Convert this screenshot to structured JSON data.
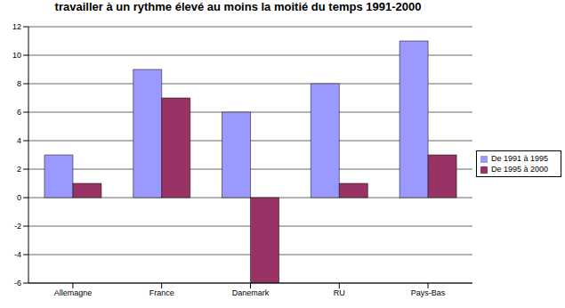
{
  "chart_data": {
    "type": "bar",
    "title": "travailler à un rythme élevé au moins la moitié du temps 1991-2000",
    "categories": [
      "Allemagne",
      "France",
      "Danemark",
      "RU",
      "Pays-Bas"
    ],
    "series": [
      {
        "name": "De 1991 à 1995",
        "color": "#9999ff",
        "values": [
          3,
          9,
          6,
          8,
          11
        ]
      },
      {
        "name": "De 1995 à 2000",
        "color": "#993366",
        "values": [
          1,
          7,
          -6,
          1,
          3
        ]
      }
    ],
    "ylim": [
      -6,
      12
    ],
    "yticks": [
      -6,
      -4,
      -2,
      0,
      2,
      4,
      6,
      8,
      10,
      12
    ],
    "grid": true,
    "legend": "right"
  }
}
